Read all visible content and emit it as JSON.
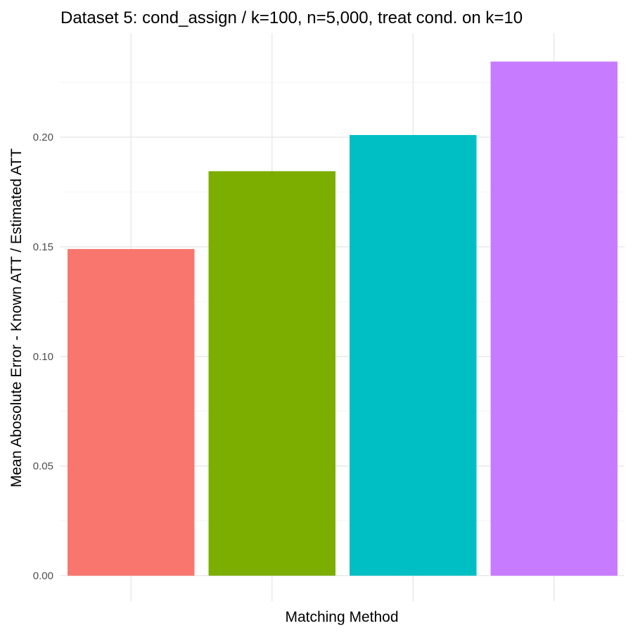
{
  "chart_data": {
    "type": "bar",
    "title": "Dataset 5: cond_assign / k=100, n=5,000, treat cond. on k=10",
    "xlabel": "Matching Method",
    "ylabel": "Mean Abosolute Error - Known ATT / Estimated ATT",
    "categories": [
      "",
      "",
      "",
      ""
    ],
    "values": [
      0.149,
      0.1845,
      0.201,
      0.2345
    ],
    "colors": [
      "#F8766D",
      "#7CAE00",
      "#00BFC4",
      "#C77CFF"
    ],
    "ylim": [
      -0.0117,
      0.2475
    ],
    "yticks": [
      0.0,
      0.05,
      0.1,
      0.15,
      0.2
    ],
    "ytick_labels": [
      "0.00",
      "0.05",
      "0.10",
      "0.15",
      "0.20"
    ],
    "grid": true,
    "legend": "none"
  }
}
